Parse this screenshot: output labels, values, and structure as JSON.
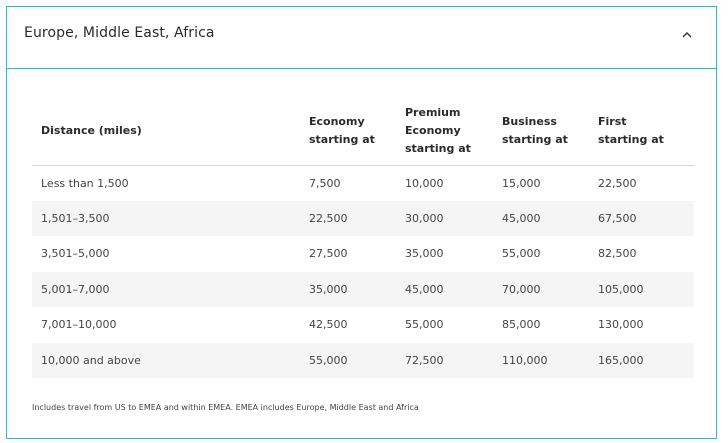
{
  "accordion": {
    "title": "Europe, Middle East, Africa",
    "expanded": true,
    "toggle_icon": "chevron-up-icon",
    "border_color": "#5aa7b6"
  },
  "table": {
    "headers": [
      [
        "Distance (miles)"
      ],
      [
        "Economy",
        "starting at"
      ],
      [
        "Premium",
        "Economy",
        "starting at"
      ],
      [
        "Business",
        "starting at"
      ],
      [
        "First",
        "starting at"
      ]
    ],
    "rows": [
      [
        "Less than 1,500",
        "7,500",
        "10,000",
        "15,000",
        "22,500"
      ],
      [
        "1,501–3,500",
        "22,500",
        "30,000",
        "45,000",
        "67,500"
      ],
      [
        "3,501–5,000",
        "27,500",
        "35,000",
        "55,000",
        "82,500"
      ],
      [
        "5,001–7,000",
        "35,000",
        "45,000",
        "70,000",
        "105,000"
      ],
      [
        "7,001–10,000",
        "42,500",
        "55,000",
        "85,000",
        "130,000"
      ],
      [
        "10,000 and above",
        "55,000",
        "72,500",
        "110,000",
        "165,000"
      ]
    ],
    "shade_color": "#f5f5f5"
  },
  "footnote": "Includes travel from US to EMEA and within EMEA. EMEA includes Europe, Middle East and Africa"
}
